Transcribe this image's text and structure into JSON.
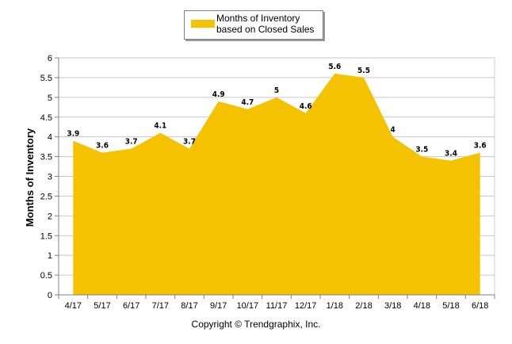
{
  "chart_data": {
    "type": "area",
    "categories": [
      "4/17",
      "5/17",
      "6/17",
      "7/17",
      "8/17",
      "9/17",
      "10/17",
      "11/17",
      "12/17",
      "1/18",
      "2/18",
      "3/18",
      "4/18",
      "5/18",
      "6/18"
    ],
    "series": [
      {
        "name": "Months of Inventory based on Closed Sales",
        "values": [
          3.9,
          3.6,
          3.7,
          4.1,
          3.7,
          4.9,
          4.7,
          5,
          4.6,
          5.6,
          5.5,
          4,
          3.5,
          3.4,
          3.6
        ],
        "labels": [
          "3.9",
          "3.6",
          "3.7",
          "4.1",
          "3.7",
          "4.9",
          "4.7",
          "5",
          "4.6",
          "5.6",
          "5.5",
          "4",
          "3.5",
          "3.4",
          "3.6"
        ]
      }
    ],
    "ylabel": "Months of Inventory",
    "xlabel": "",
    "ylim": [
      0,
      6
    ],
    "yticks": [
      "0",
      "0.5",
      "1",
      "1.5",
      "2",
      "2.5",
      "3",
      "3.5",
      "4",
      "4.5",
      "5",
      "5.5",
      "6"
    ],
    "grid": true,
    "legend_position": "top-center",
    "fill_color": "#F5C200"
  },
  "legend": {
    "label": "Months of Inventory based on Closed Sales"
  },
  "footer": {
    "copyright": "Copyright © Trendgraphix, Inc."
  }
}
